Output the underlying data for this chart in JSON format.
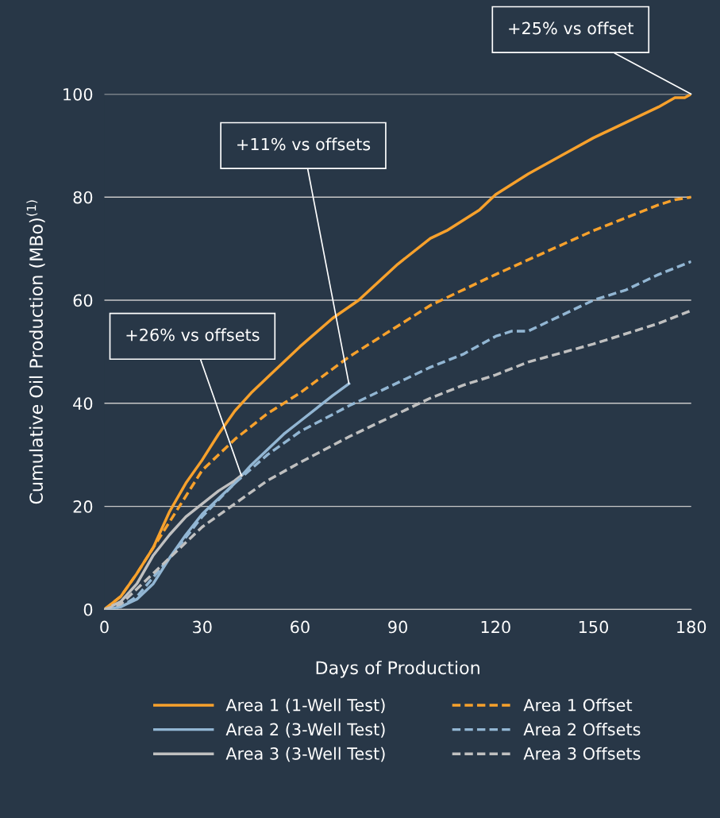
{
  "chart_data": {
    "type": "line",
    "xlabel": "Days of Production",
    "ylabel": "Cumulative Oil Production (MBo)$^{(1)}$",
    "xlim": [
      0,
      180
    ],
    "xticks": [
      0,
      30,
      60,
      90,
      120,
      150,
      180
    ],
    "ylim": [
      0,
      100
    ],
    "yticks": [
      0,
      20,
      40,
      60,
      80,
      100
    ],
    "grid": "y",
    "legend": "bottom",
    "marker": "none",
    "series": [
      {
        "name": "Area 1 (1-Well Test)",
        "color": "#f7a12c",
        "line_style": "solid",
        "x": [
          0,
          5,
          10,
          15,
          20,
          25,
          30,
          35,
          40,
          45,
          50,
          60,
          70,
          78,
          90,
          100,
          105,
          110,
          115,
          120,
          130,
          140,
          150,
          160,
          170,
          175,
          178,
          180
        ],
        "values": [
          0,
          2.5,
          7,
          12,
          19,
          24.5,
          29,
          34,
          38.5,
          42,
          45,
          51,
          56.5,
          60,
          67,
          72,
          73.5,
          75.5,
          77.5,
          80.5,
          84.5,
          88,
          91.5,
          94.5,
          97.5,
          99.3,
          99.3,
          100
        ]
      },
      {
        "name": "Area 2 (3-Well Test)",
        "color": "#92b6d3",
        "line_style": "solid",
        "x": [
          0,
          5,
          10,
          15,
          20,
          25,
          30,
          35,
          40,
          45,
          50,
          55,
          60,
          65,
          70,
          75
        ],
        "values": [
          0,
          0.5,
          2,
          5,
          10,
          14.5,
          18.5,
          21.5,
          24.5,
          28,
          31,
          34,
          36.5,
          39,
          41.5,
          43.8
        ]
      },
      {
        "name": "Area 3 (3-Well Test)",
        "color": "#c0c0c0",
        "line_style": "solid",
        "x": [
          0,
          5,
          10,
          15,
          20,
          25,
          30,
          35,
          40,
          42
        ],
        "values": [
          0,
          1.5,
          5,
          10.5,
          14.5,
          18,
          20.5,
          23,
          25,
          26
        ]
      },
      {
        "name": "Area 1 Offset",
        "color": "#f7a12c",
        "line_style": "dashed",
        "x": [
          0,
          5,
          10,
          20,
          30,
          40,
          50,
          60,
          75,
          90,
          100,
          120,
          150,
          170,
          175,
          180
        ],
        "values": [
          0,
          2.5,
          7,
          17,
          27,
          33,
          38,
          42,
          49,
          55,
          59,
          65,
          73.5,
          78.5,
          79.5,
          80
        ]
      },
      {
        "name": "Area 2 Offsets",
        "color": "#92b6d3",
        "line_style": "dashed",
        "x": [
          0,
          5,
          10,
          20,
          30,
          40,
          50,
          60,
          75,
          90,
          100,
          110,
          120,
          125,
          130,
          140,
          150,
          160,
          170,
          180
        ],
        "values": [
          0,
          0.5,
          2.5,
          10,
          18,
          24.5,
          30,
          34.5,
          39.5,
          44,
          47,
          49.5,
          53,
          54,
          54,
          57,
          60,
          62,
          65,
          67.5
        ]
      },
      {
        "name": "Area 3 Offsets",
        "color": "#c0c0c0",
        "line_style": "dashed",
        "x": [
          0,
          5,
          10,
          20,
          30,
          40,
          50,
          60,
          75,
          90,
          100,
          110,
          120,
          130,
          150,
          170,
          180
        ],
        "values": [
          0,
          1,
          4,
          10,
          16,
          20.5,
          25,
          28.5,
          33.5,
          38,
          41,
          43.5,
          45.5,
          48,
          51.5,
          55.5,
          58
        ]
      }
    ],
    "annotations": [
      {
        "text": "+25% vs offset",
        "x": 180,
        "y": 100
      },
      {
        "text": "+11% vs offsets",
        "x": 75,
        "y": 43.8
      },
      {
        "text": "+26% vs offsets",
        "x": 42,
        "y": 26
      }
    ]
  }
}
